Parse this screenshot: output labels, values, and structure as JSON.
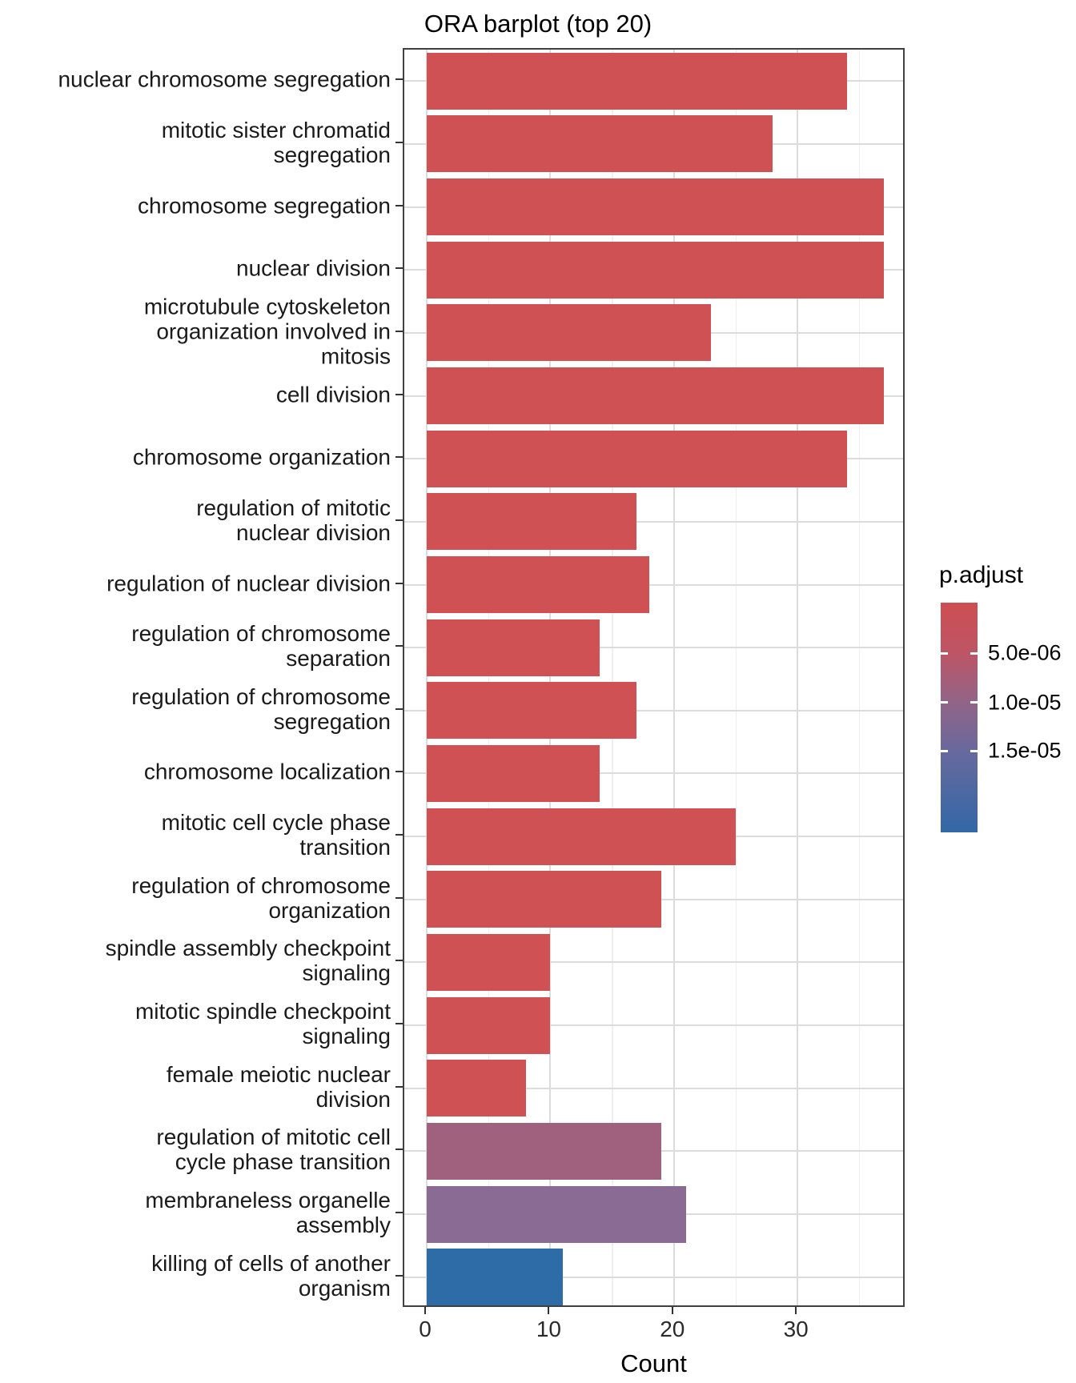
{
  "title": "ORA barplot (top 20)",
  "chart_data": {
    "type": "bar",
    "orientation": "horizontal",
    "title": "ORA barplot (top 20)",
    "xlabel": "Count",
    "ylabel": "",
    "xlim": [
      0,
      38.8
    ],
    "x_ticks": [
      0,
      10,
      20,
      30
    ],
    "x_minor_gridlines": [
      5,
      15,
      25,
      35
    ],
    "grid": "on",
    "legend_position": "right",
    "categories": [
      "nuclear chromosome segregation",
      "mitotic sister chromatid segregation",
      "chromosome segregation",
      "nuclear division",
      "microtubule cytoskeleton organization involved in mitosis",
      "cell division",
      "chromosome organization",
      "regulation of mitotic nuclear division",
      "regulation of nuclear division",
      "regulation of chromosome separation",
      "regulation of chromosome segregation",
      "chromosome localization",
      "mitotic cell cycle phase transition",
      "regulation of chromosome organization",
      "spindle assembly checkpoint signaling",
      "mitotic spindle checkpoint signaling",
      "female meiotic nuclear division",
      "regulation of mitotic cell cycle phase transition",
      "membraneless organelle assembly",
      "killing of cells of another organism"
    ],
    "category_lines": [
      [
        "nuclear chromosome segregation"
      ],
      [
        "mitotic sister chromatid",
        "segregation"
      ],
      [
        "chromosome segregation"
      ],
      [
        "nuclear division"
      ],
      [
        "microtubule cytoskeleton",
        "organization involved in",
        "mitosis"
      ],
      [
        "cell division"
      ],
      [
        "chromosome organization"
      ],
      [
        "regulation of mitotic",
        "nuclear division"
      ],
      [
        "regulation of nuclear division"
      ],
      [
        "regulation of chromosome",
        "separation"
      ],
      [
        "regulation of chromosome",
        "segregation"
      ],
      [
        "chromosome localization"
      ],
      [
        "mitotic cell cycle phase",
        "transition"
      ],
      [
        "regulation of chromosome",
        "organization"
      ],
      [
        "spindle assembly checkpoint",
        "signaling"
      ],
      [
        "mitotic spindle checkpoint",
        "signaling"
      ],
      [
        "female meiotic nuclear",
        "division"
      ],
      [
        "regulation of mitotic cell",
        "cycle phase transition"
      ],
      [
        "membraneless organelle",
        "assembly"
      ],
      [
        "killing of cells of another",
        "organism"
      ]
    ],
    "values": [
      34,
      28,
      37,
      37,
      23,
      37,
      34,
      17,
      18,
      14,
      17,
      14,
      25,
      19,
      10,
      10,
      8,
      19,
      21,
      11
    ],
    "bar_colors": [
      "#CF5154",
      "#CF5154",
      "#CF5154",
      "#CF5154",
      "#CF5154",
      "#CF5154",
      "#CF5154",
      "#CF5154",
      "#CF5154",
      "#CF5154",
      "#CF5154",
      "#CF5154",
      "#CF5154",
      "#CF5154",
      "#CF5154",
      "#CF5154",
      "#CF5154",
      "#A0617F",
      "#8A6B94",
      "#2D6CA6"
    ],
    "legend": {
      "title": "p.adjust",
      "tick_labels": [
        "5.0e-06",
        "1.0e-05",
        "1.5e-05"
      ],
      "gradient_top_color": "#CE4E51",
      "gradient_bottom_color": "#3368A7"
    }
  },
  "colors": {
    "bar_red": "#CF5154",
    "bar_mauve": "#A0617F",
    "bar_purple": "#8A6B94",
    "bar_blue": "#2D6CA6",
    "panel_border": "#404040",
    "grid_major": "#dcdcdc",
    "grid_minor": "#efefef",
    "axis_text": "#2b2b2b"
  }
}
